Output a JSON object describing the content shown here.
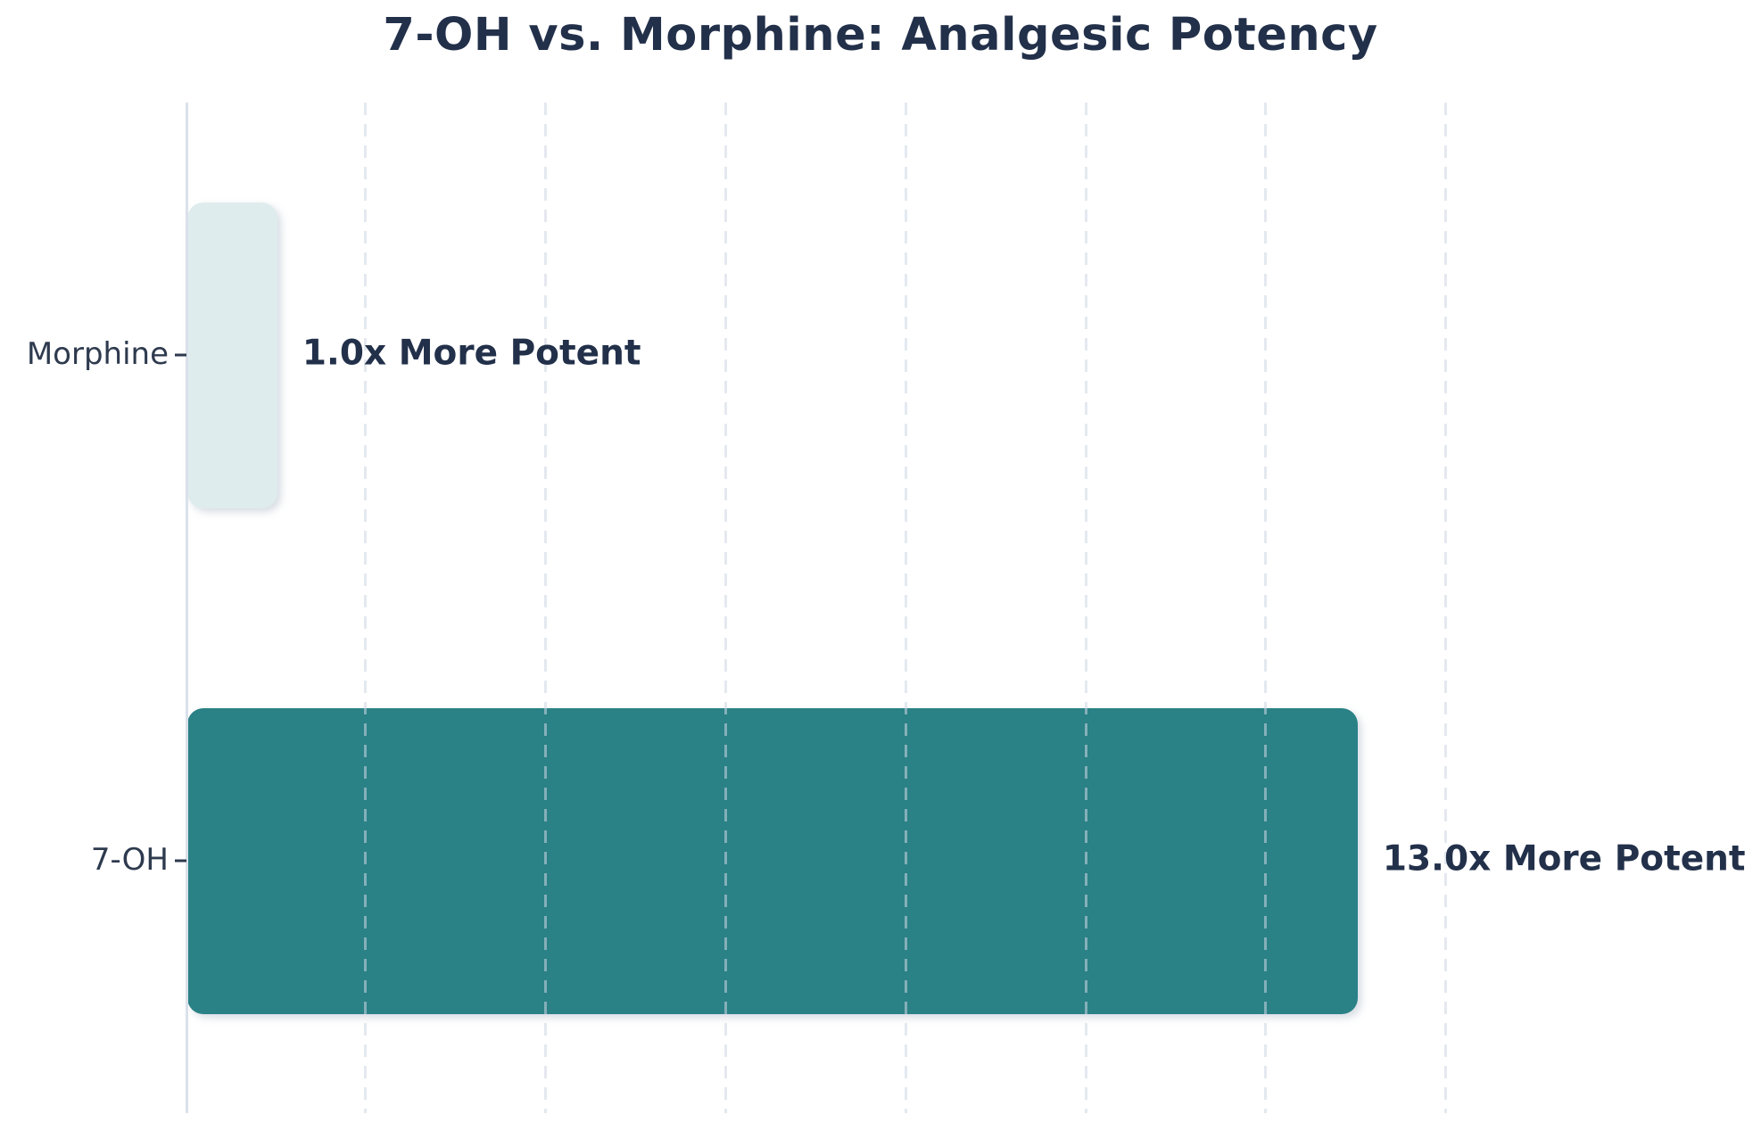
{
  "chart_data": {
    "type": "bar",
    "orientation": "horizontal",
    "title": "7-OH vs. Morphine: Analgesic Potency",
    "categories": [
      "Morphine",
      "7-OH"
    ],
    "values": [
      1.0,
      13.0
    ],
    "bar_labels": [
      "1.0x More Potent",
      "13.0x More Potent"
    ],
    "xlim": [
      0,
      17.5
    ],
    "x_ticks": [
      2,
      4,
      6,
      8,
      10,
      12,
      14
    ],
    "x_tick_labels_shown": false,
    "legend": "none",
    "grid": "vertical dashed gridlines over bars",
    "bar_colors": [
      "#dfecee",
      "#2a8186"
    ],
    "title_color": "#22304a",
    "value_label_color": "#22304a",
    "tick_label_color": "#2e3a4e",
    "axis_line_color": "#dae1ea"
  }
}
